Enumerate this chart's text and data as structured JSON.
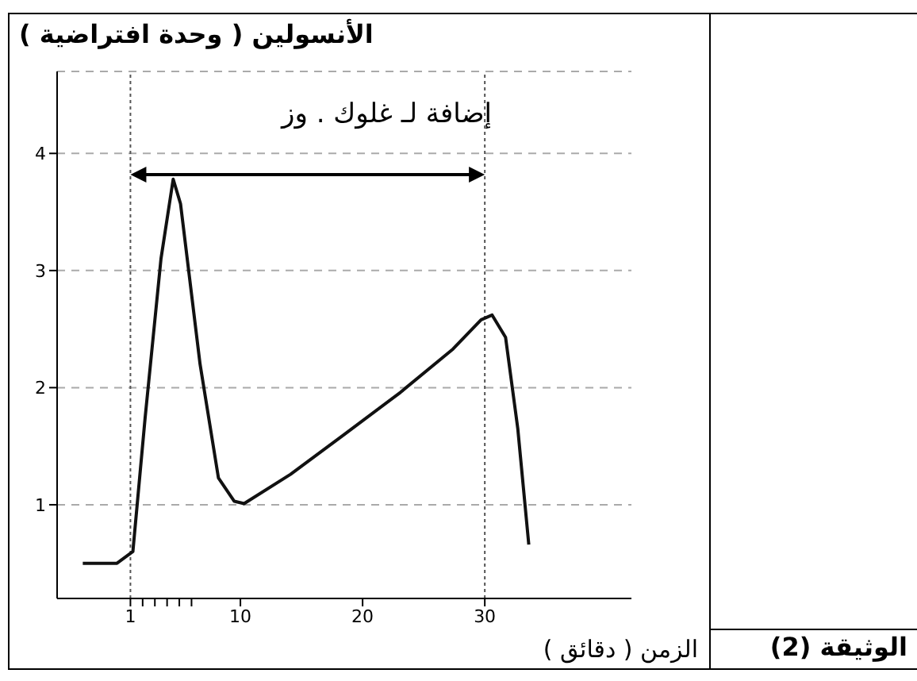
{
  "chart_data": {
    "type": "line",
    "ylabel": "الأنسولين ( وحدة افتراضية )",
    "xlabel": "الزمن ( دقائق )",
    "x": [
      -2.9,
      -0.1,
      1.2,
      2.2,
      3.5,
      4.5,
      5.1,
      6.7,
      8.2,
      9.5,
      10.3,
      14.1,
      18.5,
      23.1,
      27.4,
      29.7,
      30.6,
      31.7,
      32.7,
      33.6
    ],
    "series": [
      {
        "color": "#111111",
        "values": [
          0.5,
          0.5,
          0.6,
          1.74,
          3.1,
          3.78,
          3.57,
          2.2,
          1.23,
          1.03,
          1.01,
          1.26,
          1.6,
          1.96,
          2.33,
          2.58,
          2.62,
          2.43,
          1.65,
          0.66
        ]
      }
    ],
    "xlim": [
      -5,
      42
    ],
    "xticks": [
      {
        "value": 1,
        "label": "1"
      },
      {
        "value": 2,
        "label": null
      },
      {
        "value": 3,
        "label": null
      },
      {
        "value": 4,
        "label": null
      },
      {
        "value": 5,
        "label": null
      },
      {
        "value": 6,
        "label": null
      },
      10,
      20,
      30
    ],
    "ylim": [
      0.2,
      4.7
    ],
    "yticks": [
      1,
      2,
      3,
      4
    ],
    "grid": "y",
    "marker": "none",
    "line_style": "solid",
    "ref_lines": [
      {
        "axis": "x",
        "value": 1,
        "line_style": "dotted",
        "color": "#555555"
      },
      {
        "axis": "x",
        "value": 30,
        "line_style": "dotted",
        "color": "#555555"
      }
    ],
    "annotations": [
      "إضافة لـ غلوك . وز",
      "الوثيقة (2)"
    ]
  }
}
